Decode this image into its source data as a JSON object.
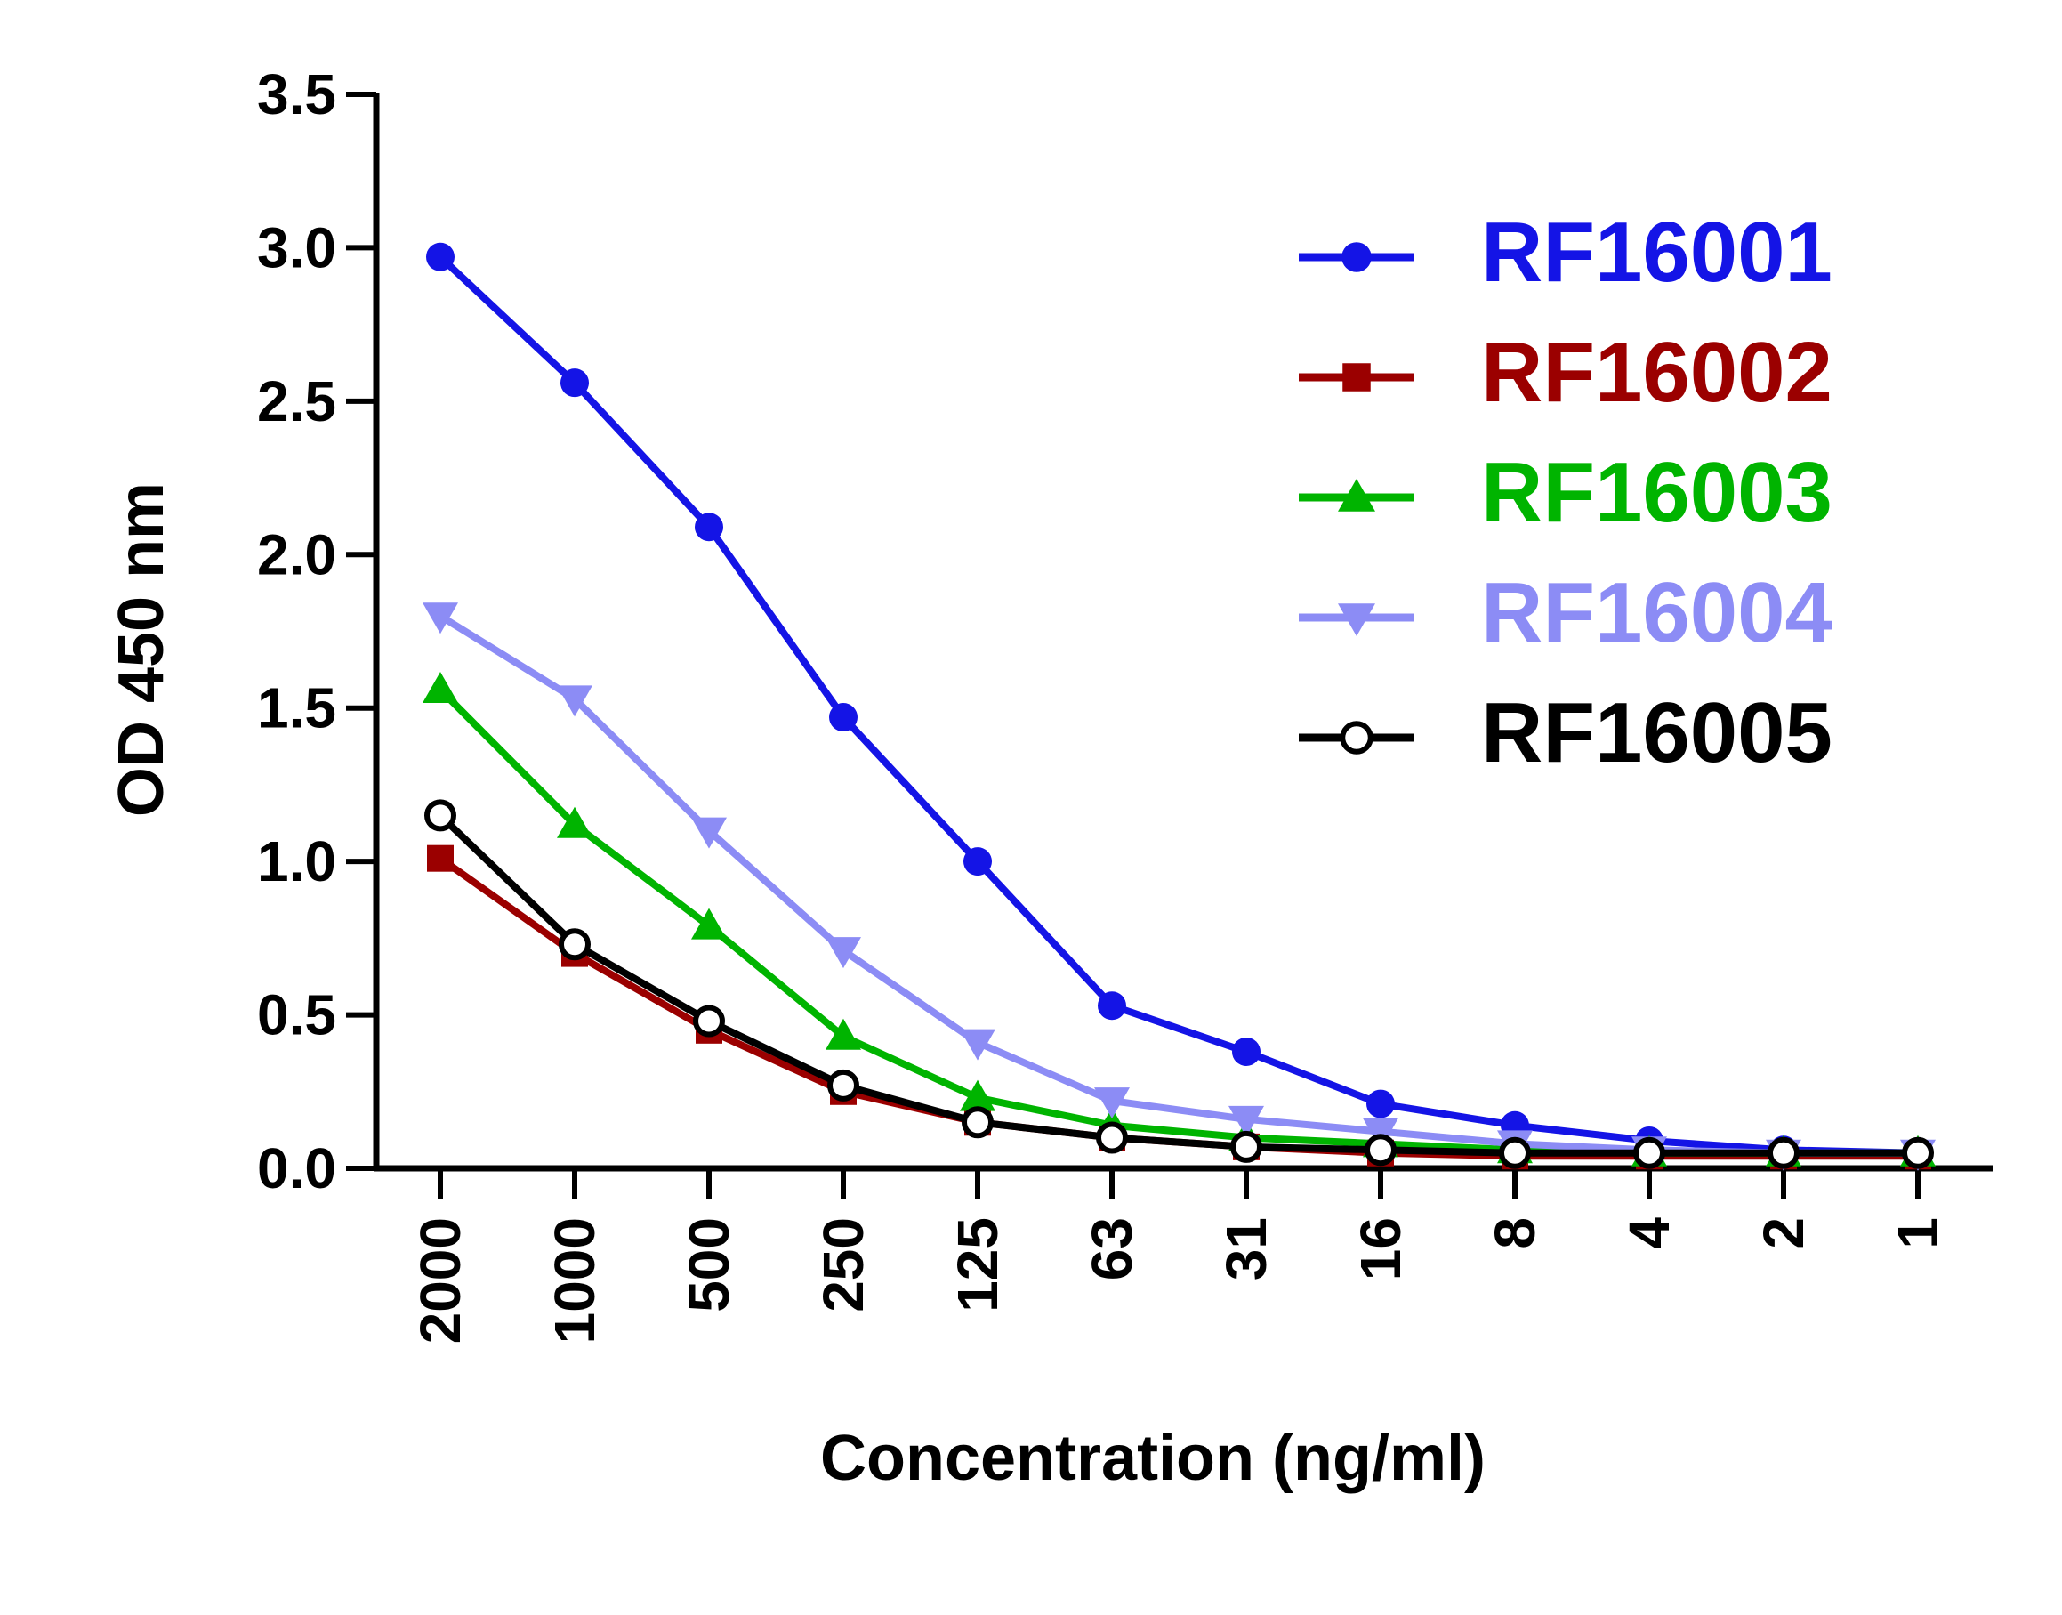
{
  "chart_data": {
    "type": "line",
    "title": "",
    "xlabel": "Concentration (ng/ml)",
    "ylabel": "OD 450 nm",
    "categories": [
      "2000",
      "1000",
      "500",
      "250",
      "125",
      "63",
      "31",
      "16",
      "8",
      "4",
      "2",
      "1"
    ],
    "ylim": [
      0,
      3.5
    ],
    "yticks": [
      "0.0",
      "0.5",
      "1.0",
      "1.5",
      "2.0",
      "2.5",
      "3.0",
      "3.5"
    ],
    "grid": false,
    "legend_position": "top-right",
    "series": [
      {
        "name": "RF16001",
        "color": "#1414e6",
        "marker": "circle-filled",
        "values": [
          2.97,
          2.56,
          2.09,
          1.47,
          1.0,
          0.53,
          0.38,
          0.21,
          0.14,
          0.09,
          0.06,
          0.05
        ]
      },
      {
        "name": "RF16002",
        "color": "#9b0000",
        "marker": "square-filled",
        "values": [
          1.01,
          0.7,
          0.45,
          0.25,
          0.15,
          0.1,
          0.07,
          0.05,
          0.04,
          0.04,
          0.04,
          0.04
        ]
      },
      {
        "name": "RF16003",
        "color": "#00b400",
        "marker": "triangle-up-filled",
        "values": [
          1.56,
          1.12,
          0.79,
          0.43,
          0.23,
          0.14,
          0.1,
          0.08,
          0.06,
          0.05,
          0.05,
          0.05
        ]
      },
      {
        "name": "RF16004",
        "color": "#8c8cf5",
        "marker": "triangle-down-filled",
        "values": [
          1.8,
          1.53,
          1.1,
          0.71,
          0.41,
          0.22,
          0.16,
          0.12,
          0.08,
          0.06,
          0.05,
          0.05
        ]
      },
      {
        "name": "RF16005",
        "color": "#000000",
        "marker": "circle-open",
        "values": [
          1.15,
          0.73,
          0.48,
          0.27,
          0.15,
          0.1,
          0.07,
          0.06,
          0.05,
          0.05,
          0.05,
          0.05
        ]
      }
    ]
  }
}
